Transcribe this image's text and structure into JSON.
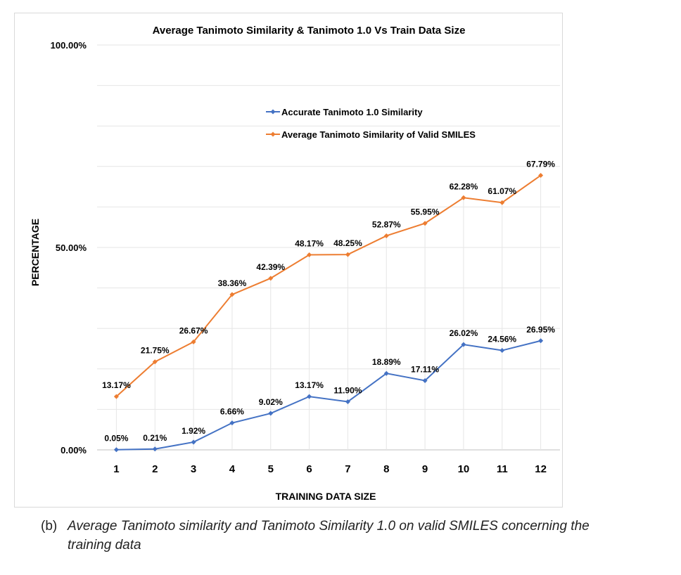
{
  "chart_data": {
    "type": "line",
    "title": "Average Tanimoto Similarity & Tanimoto 1.0  Vs Train Data Size",
    "xlabel": "TRAINING DATA SIZE",
    "ylabel": "PERCENTAGE",
    "categories": [
      "1",
      "2",
      "3",
      "4",
      "5",
      "6",
      "7",
      "8",
      "9",
      "10",
      "11",
      "12"
    ],
    "ylim": [
      0,
      100
    ],
    "yticks": [
      "0.00%",
      "50.00%",
      "100.00%"
    ],
    "grid": true,
    "legend_position": "upper-center",
    "series": [
      {
        "name": "Accurate Tanimoto 1.0 Similarity",
        "color": "#4472c4",
        "values": [
          0.05,
          0.21,
          1.92,
          6.66,
          9.02,
          13.17,
          11.9,
          18.89,
          17.11,
          26.02,
          24.56,
          26.95
        ],
        "labels": [
          "0.05%",
          "0.21%",
          "1.92%",
          "6.66%",
          "9.02%",
          "13.17%",
          "11.90%",
          "18.89%",
          "17.11%",
          "26.02%",
          "24.56%",
          "26.95%"
        ]
      },
      {
        "name": "Average Tanimoto Similarity of Valid SMILES",
        "color": "#ed7d31",
        "values": [
          13.17,
          21.75,
          26.67,
          38.36,
          42.39,
          48.17,
          48.25,
          52.87,
          55.95,
          62.28,
          61.07,
          67.79
        ],
        "labels": [
          "13.17%",
          "21.75%",
          "26.67%",
          "38.36%",
          "42.39%",
          "48.17%",
          "48.25%",
          "52.87%",
          "55.95%",
          "62.28%",
          "61.07%",
          "67.79%"
        ]
      }
    ]
  },
  "caption": {
    "prefix": "(b)",
    "line1": "Average Tanimoto similarity and Tanimoto Similarity 1.0 on valid SMILES concerning the",
    "line2": "training data"
  }
}
